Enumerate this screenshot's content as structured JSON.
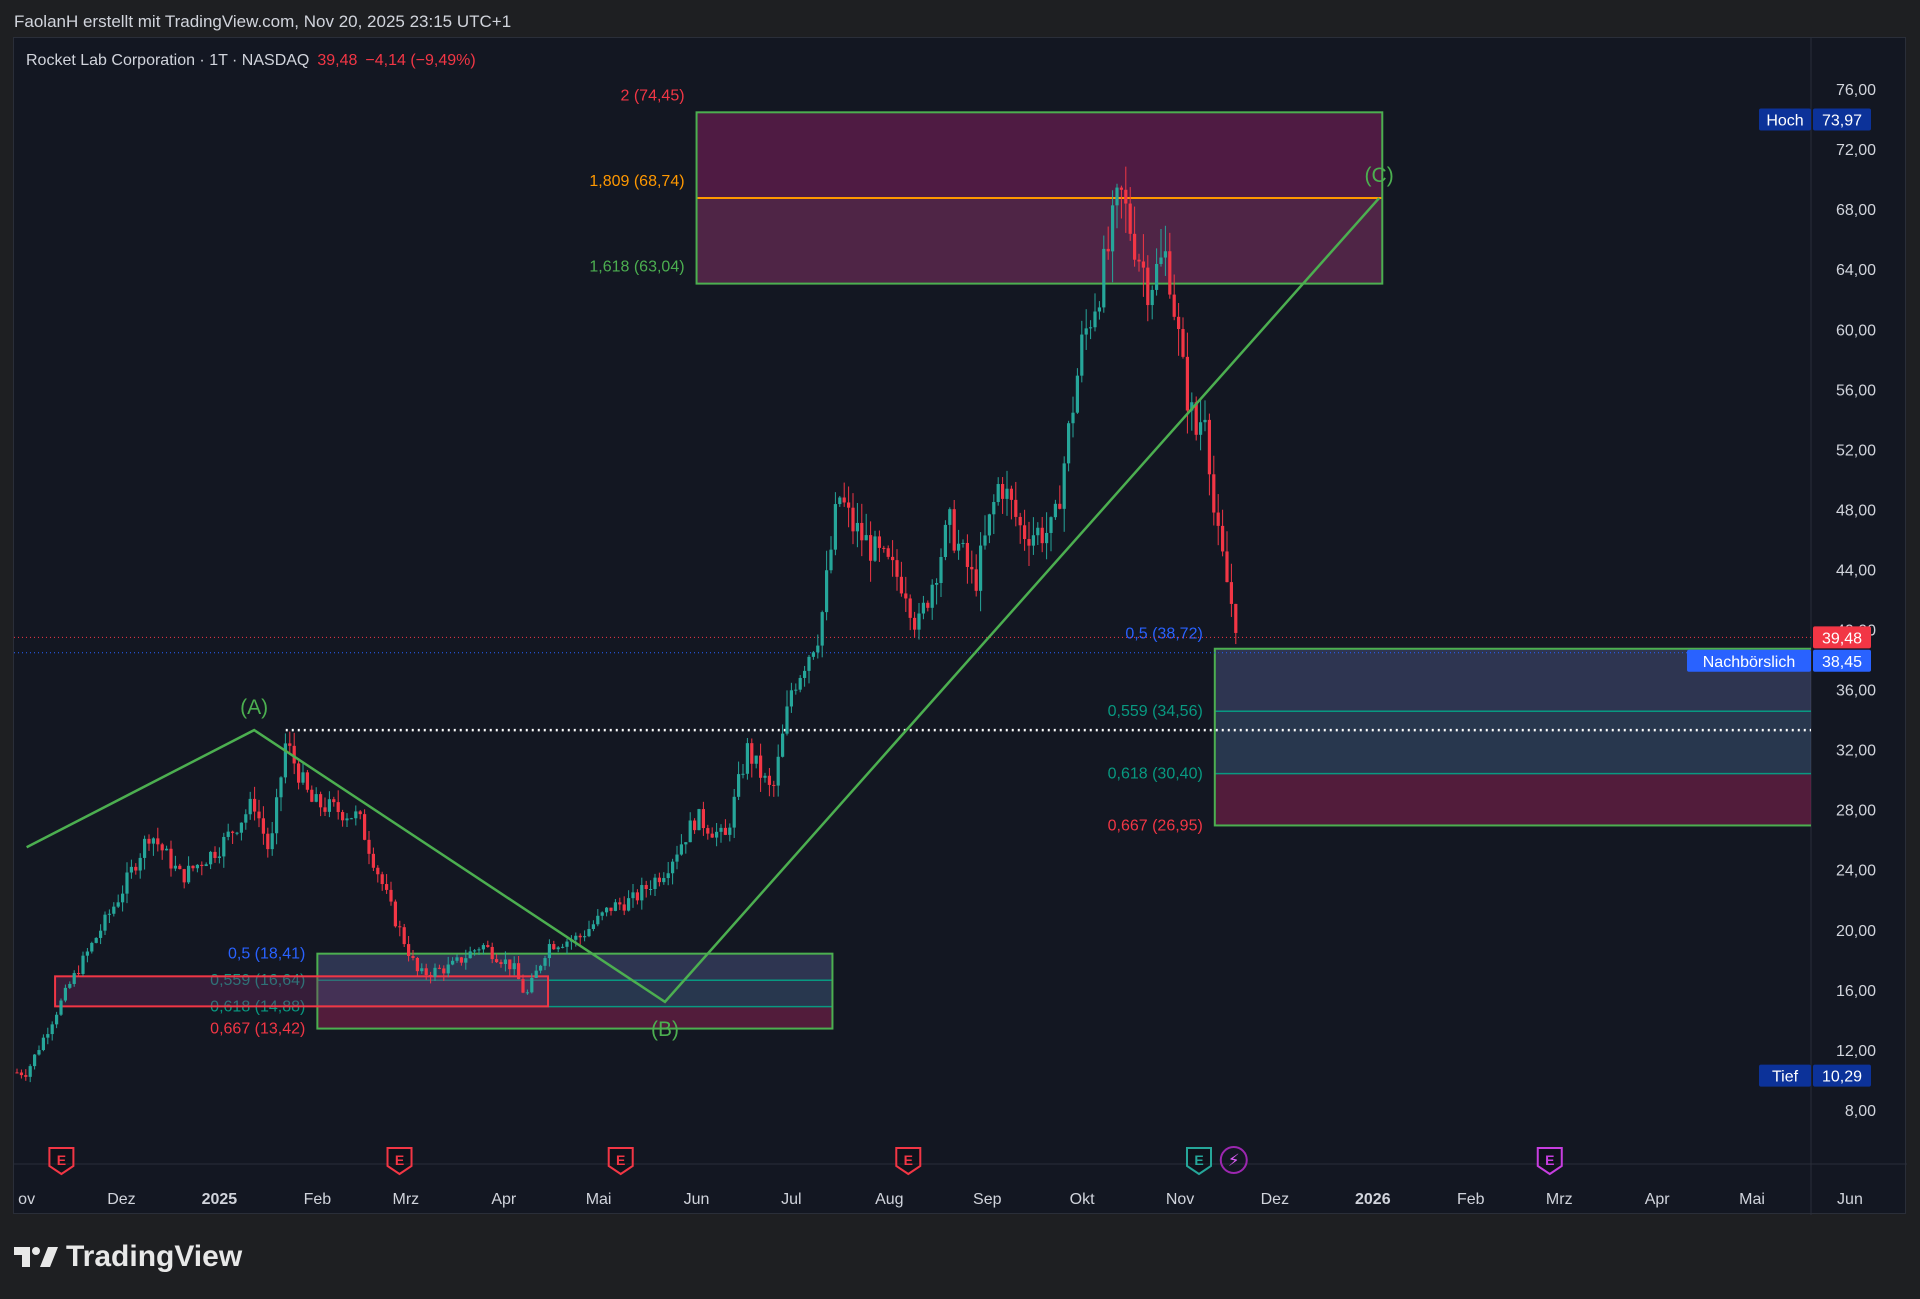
{
  "header": {
    "attribution": "FaolanH erstellt mit TradingView.com, Nov 20, 2025 23:15 UTC+1"
  },
  "legend": {
    "symbol": "Rocket Lab Corporation · 1T · NASDAQ",
    "price": "39,48",
    "change": "−4,14 (−9,49%)"
  },
  "brand": {
    "name": "TradingView",
    "logo_icon": "tradingview-logo-icon"
  },
  "colors": {
    "background": "#131722",
    "up": "#26a69a",
    "down": "#f23645",
    "wave": "#4caf50",
    "grid": "#2a2e39"
  },
  "chart_data": {
    "type": "candlestick",
    "x_ticks": [
      "Nov",
      "Dez",
      "2025",
      "Feb",
      "Mrz",
      "Apr",
      "Mai",
      "Jun",
      "Jul",
      "Aug",
      "Sep",
      "Okt",
      "Nov",
      "Dez",
      "2026",
      "Feb",
      "Mrz",
      "Apr",
      "Mai",
      "Jun"
    ],
    "x_ticks_display": [
      "ov",
      "Dez",
      "2025",
      "Feb",
      "Mrz",
      "Apr",
      "Mai",
      "Jun",
      "Jul",
      "Aug",
      "Sep",
      "Okt",
      "Nov",
      "Dez",
      "2026",
      "Feb",
      "Mrz",
      "Apr",
      "Mai",
      "Jun"
    ],
    "y_ticks": [
      "8,00",
      "12,00",
      "16,00",
      "20,00",
      "24,00",
      "28,00",
      "32,00",
      "36,00",
      "40,00",
      "44,00",
      "48,00",
      "52,00",
      "56,00",
      "60,00",
      "64,00",
      "68,00",
      "72,00",
      "76,00"
    ],
    "ylim": [
      4.4,
      79.4
    ],
    "scale": "linear",
    "price_path": [
      [
        "2024-11-01",
        10.5
      ],
      [
        "2024-11-15",
        16.5
      ],
      [
        "2024-12-01",
        22.5
      ],
      [
        "2024-12-10",
        26.5
      ],
      [
        "2024-12-20",
        23.5
      ],
      [
        "2025-01-01",
        25.5
      ],
      [
        "2025-01-12",
        28.5
      ],
      [
        "2025-01-17",
        25
      ],
      [
        "2025-01-22",
        32.5
      ],
      [
        "2025-01-30",
        28.5
      ],
      [
        "2025-02-07",
        28
      ],
      [
        "2025-02-14",
        27.5
      ],
      [
        "2025-02-25",
        21
      ],
      [
        "2025-03-05",
        17
      ],
      [
        "2025-03-15",
        17.5
      ],
      [
        "2025-03-25",
        19
      ],
      [
        "2025-04-04",
        17.5
      ],
      [
        "2025-04-08",
        15.5
      ],
      [
        "2025-04-15",
        19
      ],
      [
        "2025-04-25",
        19.5
      ],
      [
        "2025-05-05",
        21.5
      ],
      [
        "2025-05-12",
        22
      ],
      [
        "2025-05-22",
        24
      ],
      [
        "2025-06-01",
        27.5
      ],
      [
        "2025-06-10",
        26
      ],
      [
        "2025-06-17",
        32
      ],
      [
        "2025-06-25",
        29
      ],
      [
        "2025-07-01",
        36
      ],
      [
        "2025-07-10",
        40
      ],
      [
        "2025-07-16",
        49
      ],
      [
        "2025-07-20",
        47
      ],
      [
        "2025-07-28",
        45
      ],
      [
        "2025-08-06",
        43
      ],
      [
        "2025-08-10",
        40
      ],
      [
        "2025-08-20",
        47
      ],
      [
        "2025-08-28",
        43
      ],
      [
        "2025-09-05",
        50
      ],
      [
        "2025-09-12",
        46.5
      ],
      [
        "2025-09-22",
        46.5
      ],
      [
        "2025-10-01",
        59
      ],
      [
        "2025-10-08",
        64
      ],
      [
        "2025-10-13",
        69
      ],
      [
        "2025-10-16",
        67
      ],
      [
        "2025-10-22",
        63
      ],
      [
        "2025-10-28",
        65
      ],
      [
        "2025-11-02",
        57
      ],
      [
        "2025-11-06",
        53
      ],
      [
        "2025-11-09",
        55
      ],
      [
        "2025-11-12",
        47
      ],
      [
        "2025-11-17",
        42
      ],
      [
        "2025-11-20",
        39.48
      ]
    ],
    "price_labels": [
      {
        "label": "",
        "value": "39,48",
        "y": 39.48,
        "color": "#f23645"
      },
      {
        "label": "Nachbörslich",
        "value": "38,45",
        "y": 38.45,
        "color": "#2962ff"
      },
      {
        "label": "Hoch",
        "value": "73,97",
        "y": 73.97,
        "color": "#0c3299"
      },
      {
        "label": "Tief",
        "value": "10,29",
        "y": 10.29,
        "color": "#0c3299"
      }
    ],
    "wave_points": [
      {
        "label": "(A)",
        "date": "2025-01-12",
        "y": 33.3
      },
      {
        "label": "(B)",
        "date": "2025-05-22",
        "y": 15.2
      },
      {
        "label": "(C)",
        "date": "2026-01-03",
        "y": 68.74
      }
    ],
    "wave_start": {
      "date": "2024-11-01",
      "y": 25.5
    },
    "fib_zones": [
      {
        "x0": "2025-02-01",
        "x1": "2025-07-14",
        "bottom": 13.42,
        "top": 18.41,
        "levels": [
          {
            "label": "0,5 (18,41)",
            "y": 18.41,
            "color": "#2962ff"
          },
          {
            "label": "0,559 (16,64)",
            "y": 16.64,
            "color": "#089981"
          },
          {
            "label": "0,618 (14,88)",
            "y": 14.88,
            "color": "#089981"
          },
          {
            "label": "0,667 (13,42)",
            "y": 13.42,
            "color": "#f23645"
          }
        ]
      },
      {
        "x0": "2025-11-12",
        "x1": "2026-06-16",
        "bottom": 26.95,
        "top": 38.72,
        "levels": [
          {
            "label": "0,5 (38,72)",
            "y": 38.72,
            "color": "#2962ff"
          },
          {
            "label": "0,559 (34,56)",
            "y": 34.56,
            "color": "#089981"
          },
          {
            "label": "0,618 (30,40)",
            "y": 30.4,
            "color": "#089981"
          },
          {
            "label": "0,667 (26,95)",
            "y": 26.95,
            "color": "#f23645"
          }
        ]
      }
    ],
    "extension_zone": {
      "x0": "2025-06-01",
      "x1": "2026-01-04",
      "bottom": 63.04,
      "top": 74.45,
      "levels": [
        {
          "label": "2 (74,45)",
          "y": 74.45,
          "color": "#f23645"
        },
        {
          "label": "1,809 (68,74)",
          "y": 68.74,
          "color": "#ff9800"
        },
        {
          "label": "1,618 (63,04)",
          "y": 63.04,
          "color": "#4caf50"
        }
      ]
    },
    "red_box": {
      "x0": "2024-11-10",
      "x1": "2025-04-15",
      "bottom": 14.9,
      "top": 16.9
    },
    "dotted_level": {
      "x0": "2025-01-22",
      "x1": "2026-06-16",
      "y": 33.3
    },
    "earnings_markers": [
      {
        "date": "2024-11-12",
        "kind": "earnings-past"
      },
      {
        "date": "2025-02-27",
        "kind": "earnings-past"
      },
      {
        "date": "2025-05-08",
        "kind": "earnings-past"
      },
      {
        "date": "2025-08-07",
        "kind": "earnings-past"
      },
      {
        "date": "2025-11-07",
        "kind": "earnings-recent"
      },
      {
        "date": "2025-11-18",
        "kind": "split-event"
      },
      {
        "date": "2026-02-26",
        "kind": "earnings-future"
      }
    ]
  }
}
